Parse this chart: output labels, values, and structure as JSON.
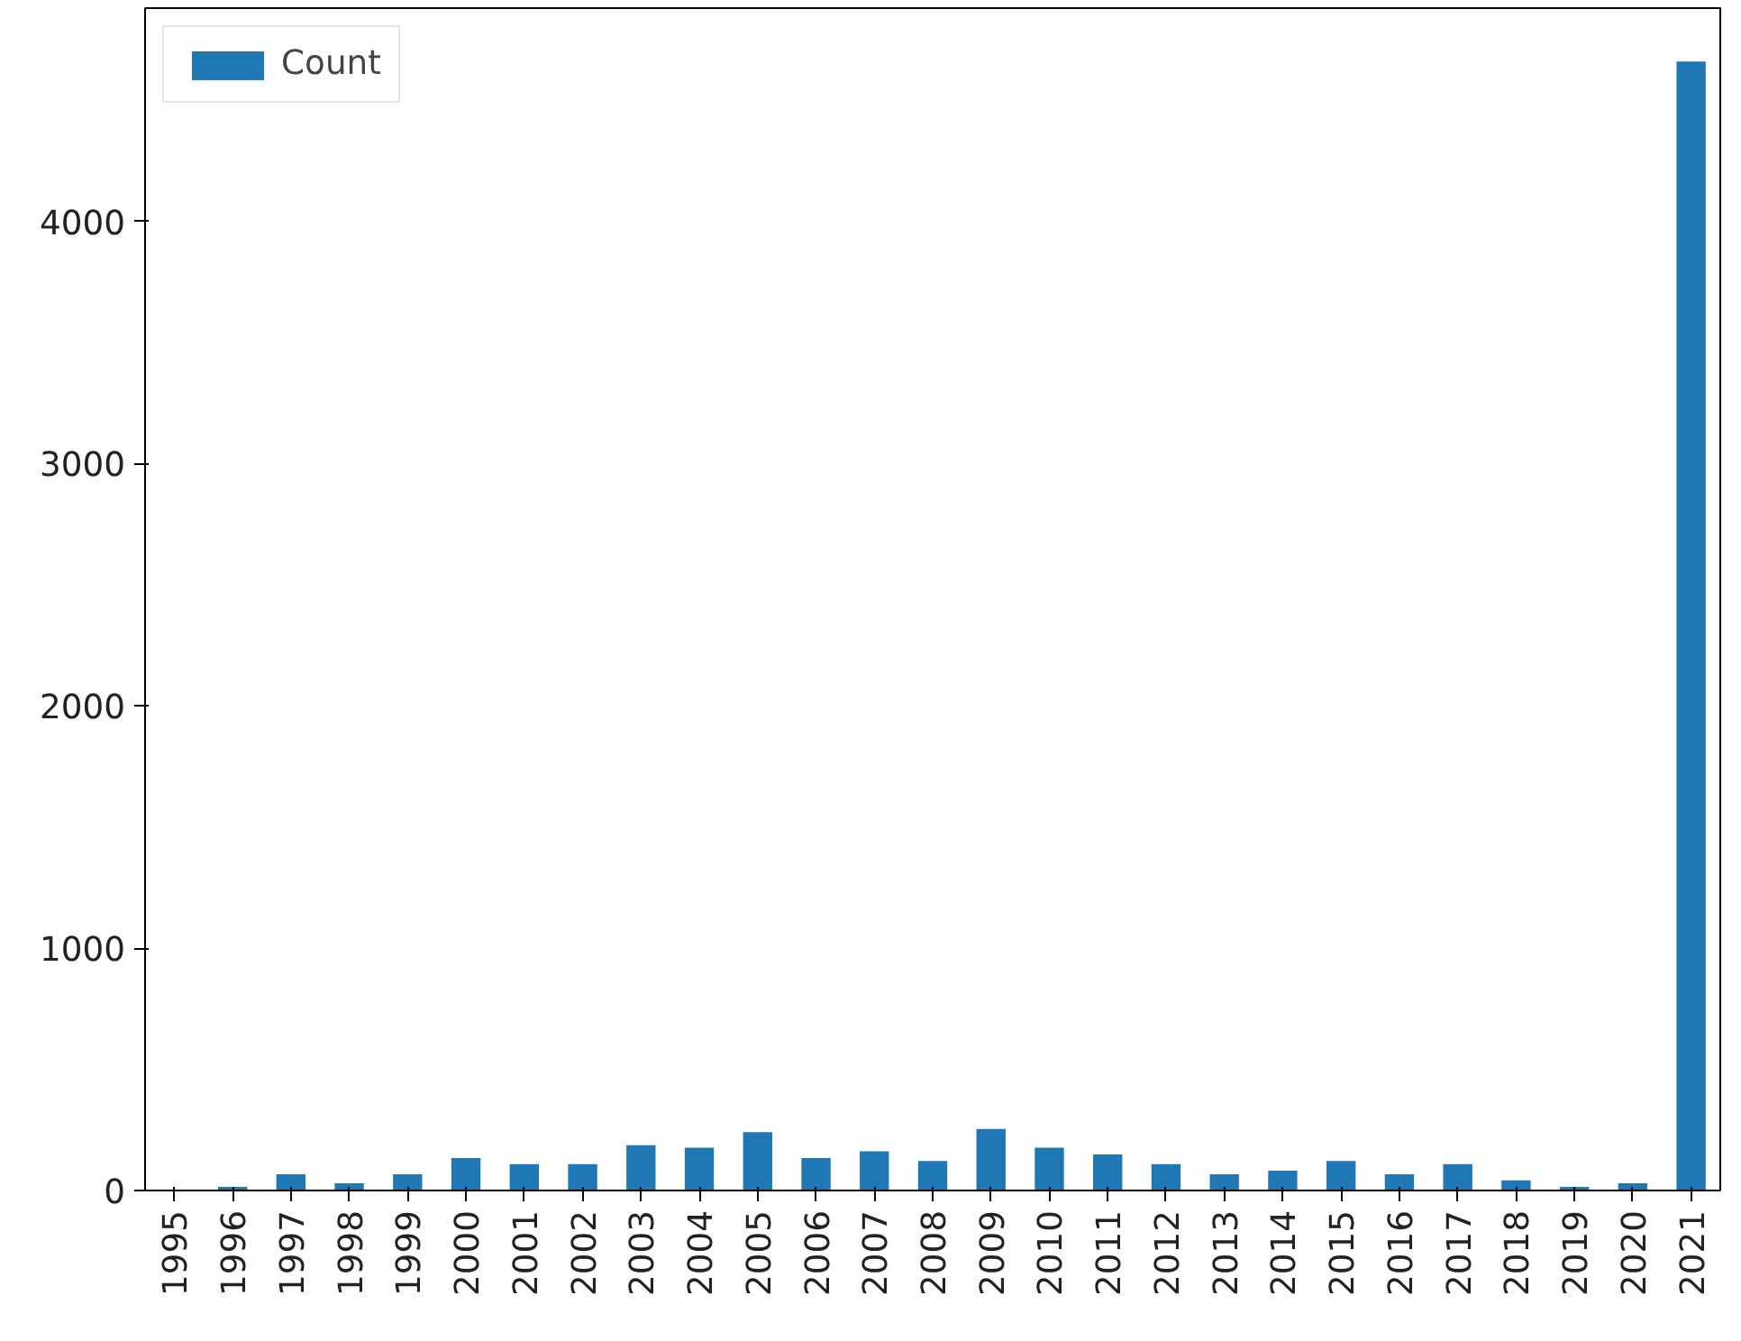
{
  "chart_data": {
    "type": "bar",
    "categories": [
      "1995",
      "1996",
      "1997",
      "1998",
      "1999",
      "2000",
      "2001",
      "2002",
      "2003",
      "2004",
      "2005",
      "2006",
      "2007",
      "2008",
      "2009",
      "2010",
      "2011",
      "2012",
      "2013",
      "2014",
      "2015",
      "2016",
      "2017",
      "2018",
      "2019",
      "2020",
      "2021"
    ],
    "series": [
      {
        "name": "Count",
        "color": "#1f77b4",
        "values": [
          0,
          15,
          67,
          30,
          67,
          134,
          109,
          109,
          187,
          177,
          241,
          134,
          162,
          122,
          254,
          177,
          149,
          109,
          67,
          82,
          122,
          67,
          109,
          42,
          15,
          30,
          4660
        ]
      }
    ],
    "ylim": [
      0,
      4880
    ],
    "yticks": [
      0,
      1000,
      2000,
      3000,
      4000
    ],
    "grid": false,
    "legend": "top left"
  }
}
